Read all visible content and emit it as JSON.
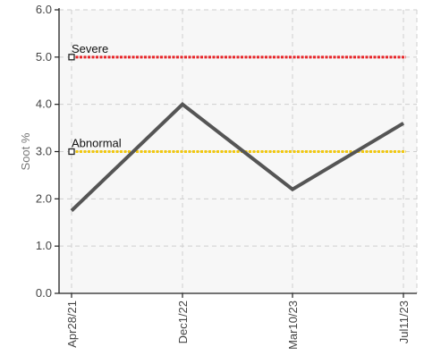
{
  "chart_data": {
    "type": "line",
    "categories": [
      "Apr28/21",
      "Dec1/22",
      "Mar10/23",
      "Jul11/23"
    ],
    "series": [
      {
        "values": [
          1.75,
          4.0,
          2.2,
          3.6
        ],
        "color": "#555555"
      }
    ],
    "thresholds": [
      {
        "label": "Severe",
        "value": 5.0,
        "color": "#e8262a"
      },
      {
        "label": "Abnormal",
        "value": 3.0,
        "color": "#f2c80f"
      }
    ],
    "ylabel": "Soot %",
    "ylim": [
      0.0,
      6.0
    ],
    "yticks": [
      "0.0",
      "1.0",
      "2.0",
      "3.0",
      "4.0",
      "5.0",
      "6.0"
    ],
    "grid": true,
    "plot_background": "#f7f7f7"
  }
}
